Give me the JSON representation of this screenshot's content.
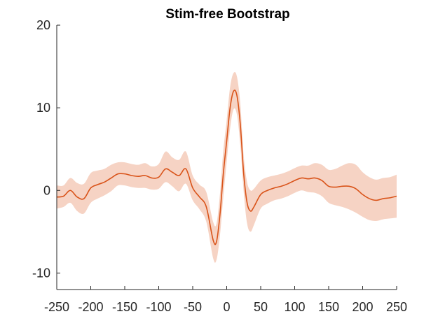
{
  "chart_data": {
    "type": "line",
    "title": "Stim-free Bootstrap",
    "xlabel": "",
    "ylabel": "",
    "xlim": [
      -250,
      250
    ],
    "ylim": [
      -12,
      20
    ],
    "x_ticks": [
      -250,
      -200,
      -150,
      -100,
      -50,
      0,
      50,
      100,
      150,
      200,
      250
    ],
    "y_ticks": [
      -10,
      0,
      10,
      20
    ],
    "grid": false,
    "colors": {
      "line": "#d95319",
      "band": "#f6d3c4",
      "axis": "#262626"
    },
    "series": [
      {
        "x": [
          -250,
          -240,
          -230,
          -220,
          -210,
          -200,
          -190,
          -180,
          -170,
          -160,
          -150,
          -140,
          -130,
          -120,
          -110,
          -100,
          -90,
          -80,
          -70,
          -60,
          -50,
          -40,
          -30,
          -20,
          -15,
          -10,
          -5,
          0,
          5,
          10,
          15,
          20,
          25,
          30,
          35,
          40,
          50,
          60,
          70,
          80,
          90,
          100,
          110,
          120,
          130,
          140,
          150,
          160,
          170,
          180,
          190,
          200,
          210,
          220,
          230,
          240,
          250
        ],
        "y": [
          -0.8,
          -0.7,
          0.0,
          -0.8,
          -1.0,
          0.3,
          0.7,
          1.0,
          1.5,
          2.0,
          2.0,
          1.8,
          1.7,
          1.8,
          1.5,
          1.6,
          2.6,
          2.2,
          1.8,
          2.6,
          0.3,
          -0.8,
          -2.0,
          -6.0,
          -6.2,
          -3.0,
          2.0,
          6.0,
          10.0,
          12.0,
          11.5,
          8.0,
          2.0,
          -1.5,
          -2.5,
          -2.0,
          -0.5,
          0.0,
          0.3,
          0.5,
          0.8,
          1.2,
          1.5,
          1.4,
          1.5,
          1.2,
          0.5,
          0.4,
          0.5,
          0.5,
          0.2,
          -0.5,
          -1.0,
          -1.2,
          -1.0,
          -0.9,
          -0.7
        ],
        "lower": [
          -2.2,
          -2.0,
          -1.5,
          -2.5,
          -2.8,
          -1.5,
          -1.0,
          -0.6,
          -0.1,
          0.6,
          0.6,
          0.4,
          0.3,
          0.3,
          0.1,
          0.2,
          1.0,
          0.5,
          -0.1,
          0.8,
          -1.2,
          -2.3,
          -3.8,
          -8.2,
          -8.4,
          -5.5,
          -0.8,
          3.5,
          7.5,
          9.8,
          9.2,
          5.5,
          -0.2,
          -4.0,
          -5.0,
          -4.2,
          -2.2,
          -1.6,
          -1.2,
          -1.0,
          -0.7,
          -0.3,
          0.0,
          -0.2,
          -0.3,
          -0.7,
          -1.5,
          -1.8,
          -2.0,
          -2.3,
          -2.7,
          -3.2,
          -3.6,
          -3.7,
          -3.5,
          -3.4,
          -3.3
        ],
        "upper": [
          0.6,
          0.6,
          1.5,
          0.9,
          0.8,
          2.1,
          2.4,
          2.6,
          3.1,
          3.4,
          3.4,
          3.2,
          3.1,
          3.3,
          2.9,
          3.2,
          4.7,
          4.0,
          3.7,
          4.7,
          1.8,
          0.7,
          -0.2,
          -3.8,
          -4.0,
          -0.5,
          4.8,
          8.5,
          12.5,
          14.2,
          13.8,
          10.5,
          4.2,
          1.0,
          0.0,
          0.2,
          1.2,
          1.6,
          1.8,
          2.0,
          2.3,
          2.7,
          3.0,
          3.0,
          3.3,
          3.1,
          2.5,
          2.6,
          3.0,
          3.3,
          3.1,
          2.2,
          1.6,
          1.3,
          1.5,
          1.6,
          1.9
        ]
      }
    ]
  }
}
